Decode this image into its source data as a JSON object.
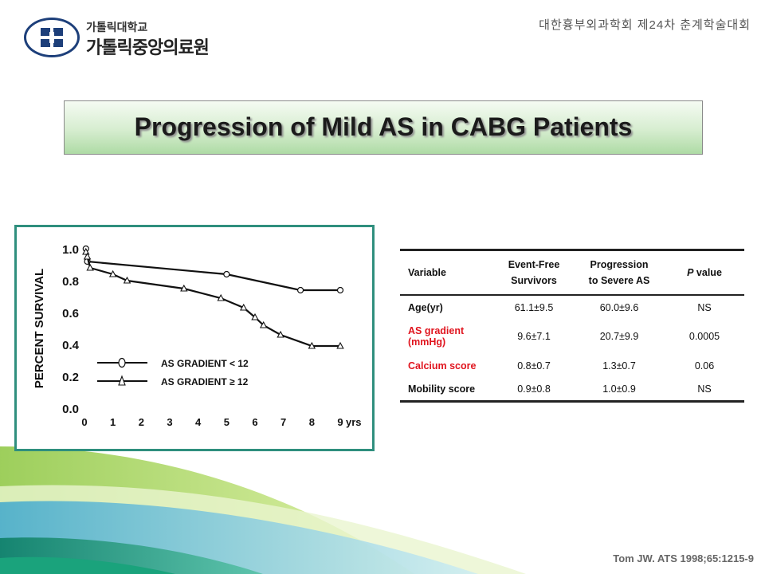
{
  "header": {
    "org_top": "가톨릭대학교",
    "org_main": "가톨릭중앙의료원",
    "conference": "대한흉부외과학회 제24차 춘계학술대회"
  },
  "title": "Progression of Mild AS in CABG Patients",
  "colors": {
    "accent": "#2f8f7e",
    "highlight": "#e0141e",
    "banner": "#aedba5"
  },
  "chart_data": {
    "type": "line",
    "ylabel": "PERCENT SURVIVAL",
    "xunit": "yrs",
    "x_ticks": [
      0,
      1,
      2,
      3,
      4,
      5,
      6,
      7,
      8,
      9
    ],
    "y_ticks": [
      0.0,
      0.2,
      0.4,
      0.6,
      0.8,
      1.0
    ],
    "y_tick_labels": [
      "0.0",
      "0.2",
      "0.4",
      "0.6",
      "0.8",
      "1.0"
    ],
    "xlim": [
      0,
      9
    ],
    "ylim": [
      0,
      1.0
    ],
    "legend_position": "lower-center",
    "series": [
      {
        "name": "AS GRADIENT < 12",
        "marker": "circle",
        "points": [
          [
            0.05,
            1.0
          ],
          [
            0.1,
            0.92
          ],
          [
            5.0,
            0.84
          ],
          [
            7.6,
            0.74
          ],
          [
            9.0,
            0.74
          ]
        ]
      },
      {
        "name": "AS GRADIENT ≥ 12",
        "marker": "triangle",
        "points": [
          [
            0.05,
            0.98
          ],
          [
            0.1,
            0.95
          ],
          [
            0.2,
            0.88
          ],
          [
            1.0,
            0.84
          ],
          [
            1.5,
            0.8
          ],
          [
            3.5,
            0.75
          ],
          [
            4.8,
            0.69
          ],
          [
            5.6,
            0.63
          ],
          [
            6.0,
            0.57
          ],
          [
            6.3,
            0.52
          ],
          [
            6.9,
            0.46
          ],
          [
            8.0,
            0.39
          ],
          [
            9.0,
            0.39
          ]
        ]
      }
    ]
  },
  "table": {
    "headers": {
      "variable": "Variable",
      "efs_line1": "Event-Free",
      "efs_line2": "Survivors",
      "prog_line1": "Progression",
      "prog_line2": "to Severe AS",
      "p_italic": "P",
      "p_rest": " value"
    },
    "rows": [
      {
        "variable": "Age(yr)",
        "efs": "61.1±9.5",
        "prog": "60.0±9.6",
        "p": "NS"
      },
      {
        "variable_line1": "AS gradient",
        "variable_line2": "(mmHg)",
        "efs": "9.6±7.1",
        "prog": "20.7±9.9",
        "p": "0.0005"
      },
      {
        "variable": "Calcium score",
        "efs": "0.8±0.7",
        "prog": "1.3±0.7",
        "p": "0.06"
      },
      {
        "variable": "Mobility score",
        "efs": "0.9±0.8",
        "prog": "1.0±0.9",
        "p": "NS"
      }
    ]
  },
  "citation": "Tom JW. ATS 1998;65:1215-9"
}
